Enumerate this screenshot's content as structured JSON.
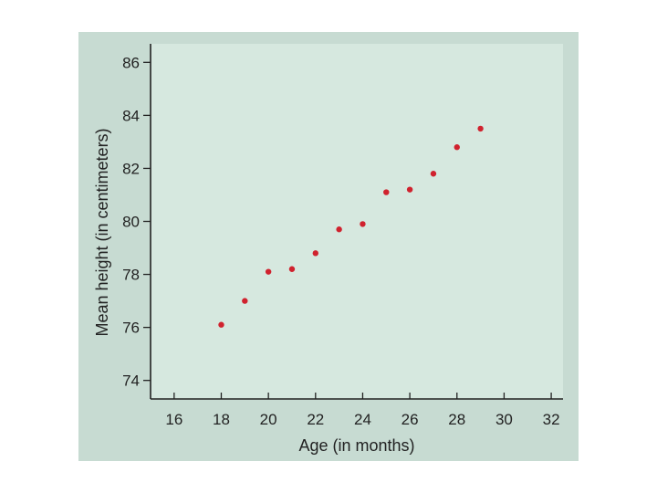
{
  "chart_data": {
    "type": "scatter",
    "title": "",
    "xlabel": "Age (in months)",
    "ylabel": "Mean height (in centimeters)",
    "xlim": [
      15,
      32.5
    ],
    "ylim": [
      73.3,
      86.7
    ],
    "xticks": [
      16,
      18,
      20,
      22,
      24,
      26,
      28,
      30,
      32
    ],
    "yticks": [
      74,
      76,
      78,
      80,
      82,
      84,
      86
    ],
    "grid": false,
    "marker_color": "#d0222e",
    "plot_background": "#d6e8df",
    "figure_background": "#c7dbd2",
    "points": [
      {
        "x": 18,
        "y": 76.1
      },
      {
        "x": 19,
        "y": 77.0
      },
      {
        "x": 20,
        "y": 78.1
      },
      {
        "x": 21,
        "y": 78.2
      },
      {
        "x": 22,
        "y": 78.8
      },
      {
        "x": 23,
        "y": 79.7
      },
      {
        "x": 24,
        "y": 79.9
      },
      {
        "x": 25,
        "y": 81.1
      },
      {
        "x": 26,
        "y": 81.2
      },
      {
        "x": 27,
        "y": 81.8
      },
      {
        "x": 28,
        "y": 82.8
      },
      {
        "x": 29,
        "y": 83.5
      }
    ]
  }
}
